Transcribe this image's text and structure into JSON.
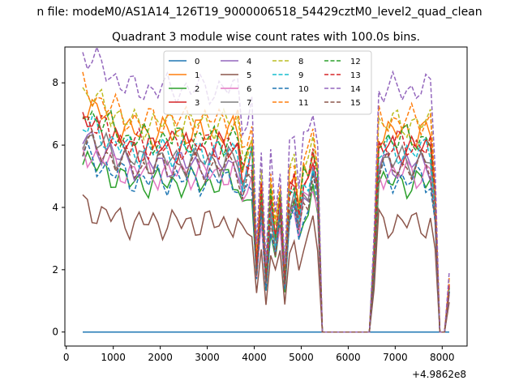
{
  "chart_data": {
    "type": "line",
    "suptitle": "n file: modeM0/AS1A14_126T19_9000006518_54429cztM0_level2_quad_clean",
    "title": "Quadrant 3 module wise count rates with 100.0s bins.",
    "xlabel": "",
    "ylabel": "",
    "x_offset_label": "+4.9862e8",
    "xlim": [
      -30,
      8530
    ],
    "ylim": [
      -0.45,
      9.15
    ],
    "xticks": [
      0,
      1000,
      2000,
      3000,
      4000,
      5000,
      6000,
      7000,
      8000
    ],
    "yticks": [
      0,
      2,
      4,
      6,
      8
    ],
    "grid": false,
    "legend": {
      "placement": "upper center",
      "columns": 4,
      "entries": [
        "0",
        "1",
        "2",
        "3",
        "4",
        "5",
        "6",
        "7",
        "8",
        "9",
        "10",
        "11",
        "12",
        "13",
        "14",
        "15"
      ]
    },
    "x": [
      350,
      450,
      550,
      650,
      750,
      850,
      950,
      1050,
      1150,
      1250,
      1350,
      1450,
      1550,
      1650,
      1750,
      1850,
      1950,
      2050,
      2150,
      2250,
      2350,
      2450,
      2550,
      2650,
      2750,
      2850,
      2950,
      3050,
      3150,
      3250,
      3350,
      3450,
      3550,
      3650,
      3750,
      3850,
      3950,
      4050,
      4150,
      4250,
      4350,
      4450,
      4550,
      4650,
      4750,
      4850,
      4950,
      5050,
      5150,
      5250,
      5350,
      5450,
      5550,
      5650,
      5750,
      5850,
      5950,
      6050,
      6150,
      6250,
      6350,
      6450,
      6550,
      6650,
      6750,
      6850,
      6950,
      7050,
      7150,
      7250,
      7350,
      7450,
      7550,
      7650,
      7750,
      7850,
      7950,
      8050,
      8150
    ],
    "envelope": [
      1,
      1,
      1,
      1,
      1,
      1,
      1,
      1,
      1,
      1,
      1,
      1,
      1,
      1,
      1,
      1,
      1,
      1,
      1,
      1,
      1,
      1,
      1,
      1,
      1,
      1,
      1,
      1,
      1,
      1,
      1,
      1,
      1,
      1,
      0.85,
      0.9,
      0.95,
      0.35,
      0.75,
      0.28,
      0.72,
      0.5,
      0.7,
      0.28,
      0.75,
      0.8,
      0.6,
      0.8,
      0.82,
      0.95,
      0.8,
      0,
      0,
      0,
      0,
      0,
      0,
      0,
      0,
      0,
      0,
      0,
      0.4,
      1,
      1,
      1,
      1,
      1,
      1,
      1,
      1,
      1,
      1,
      1,
      1,
      0.7,
      0,
      0,
      0.25
    ],
    "series": [
      {
        "name": "0",
        "color": "#1f77b4",
        "dashed": false,
        "level": 0.0
      },
      {
        "name": "1",
        "color": "#ff7f0e",
        "dashed": false,
        "level": 6.4
      },
      {
        "name": "2",
        "color": "#2ca02c",
        "dashed": false,
        "level": 4.8
      },
      {
        "name": "3",
        "color": "#d62728",
        "dashed": false,
        "level": 5.9
      },
      {
        "name": "4",
        "color": "#9467bd",
        "dashed": false,
        "level": 5.4
      },
      {
        "name": "5",
        "color": "#8c564b",
        "dashed": false,
        "level": 3.5
      },
      {
        "name": "6",
        "color": "#e377c2",
        "dashed": false,
        "level": 5.1
      },
      {
        "name": "7",
        "color": "#7f7f7f",
        "dashed": false,
        "level": 5.5
      },
      {
        "name": "8",
        "color": "#bcbd22",
        "dashed": true,
        "level": 6.7
      },
      {
        "name": "9",
        "color": "#17becf",
        "dashed": true,
        "level": 5.8
      },
      {
        "name": "10",
        "color": "#1f77b4",
        "dashed": true,
        "level": 4.9
      },
      {
        "name": "11",
        "color": "#ff7f0e",
        "dashed": true,
        "level": 6.8
      },
      {
        "name": "12",
        "color": "#2ca02c",
        "dashed": true,
        "level": 6.2
      },
      {
        "name": "13",
        "color": "#d62728",
        "dashed": true,
        "level": 6.0
      },
      {
        "name": "14",
        "color": "#9467bd",
        "dashed": true,
        "level": 7.8
      },
      {
        "name": "15",
        "color": "#8c564b",
        "dashed": true,
        "level": 5.3
      }
    ]
  }
}
